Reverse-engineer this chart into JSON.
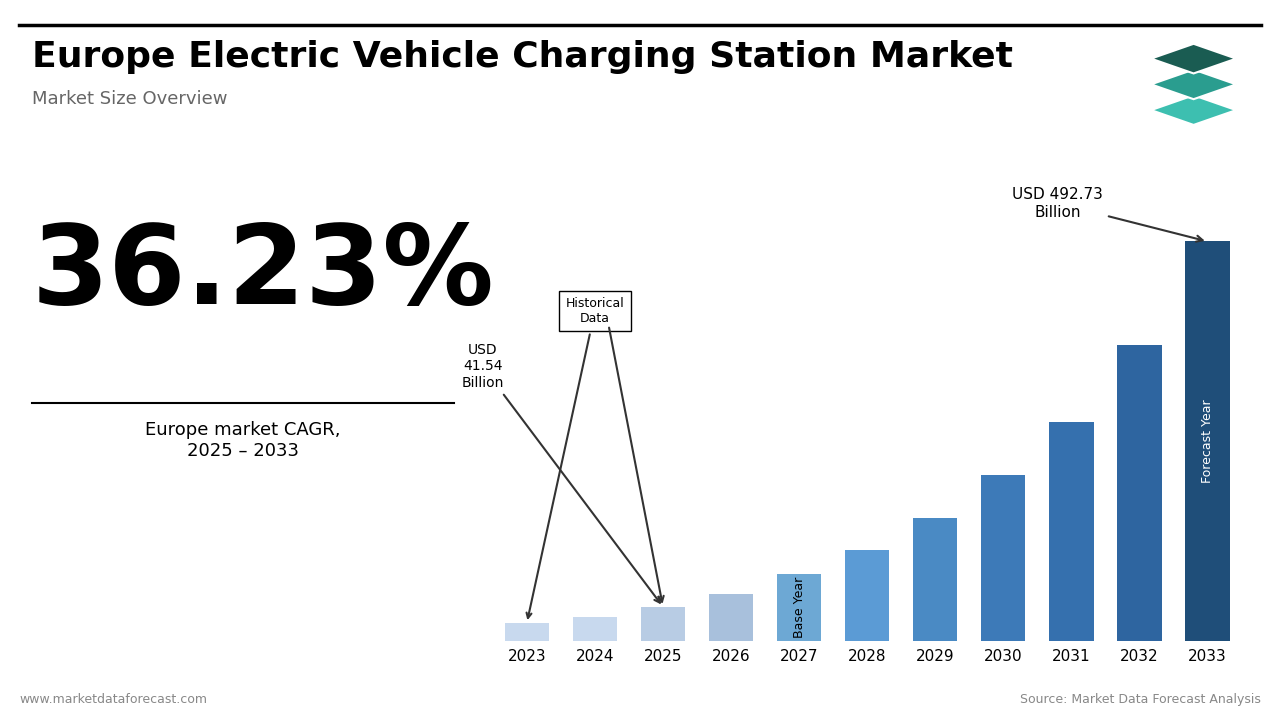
{
  "title": "Europe Electric Vehicle Charging Station Market",
  "subtitle": "Market Size Overview",
  "cagr": "36.23%",
  "cagr_label": "Europe market CAGR,\n2025 – 2033",
  "years": [
    2023,
    2024,
    2025,
    2026,
    2027,
    2028,
    2029,
    2030,
    2031,
    2032,
    2033
  ],
  "values": [
    22,
    30,
    42,
    58,
    82,
    112,
    152,
    205,
    270,
    365,
    493
  ],
  "bar_colors": [
    "#c8d9ee",
    "#c8d9ee",
    "#b8cce4",
    "#a8c0dc",
    "#6da8d4",
    "#5b9bd5",
    "#4a8ac4",
    "#3d7ab8",
    "#3570ae",
    "#2e65a0",
    "#1f4e79"
  ],
  "historical_label": "Historical\nData",
  "base_year_label": "Base Year",
  "forecast_label": "Forecast Year",
  "usd_2025": "USD\n41.54\nBillion",
  "usd_2033": "USD 492.73\nBillion",
  "arrow_color": "#333333",
  "background_color": "#ffffff",
  "footer_left": "www.marketdataforecast.com",
  "footer_right": "Source: Market Data Forecast Analysis",
  "logo_colors": [
    "#1a6b5a",
    "#2a9d8f",
    "#40c9b0"
  ],
  "title_fontsize": 26,
  "subtitle_fontsize": 13,
  "cagr_fontsize": 80
}
